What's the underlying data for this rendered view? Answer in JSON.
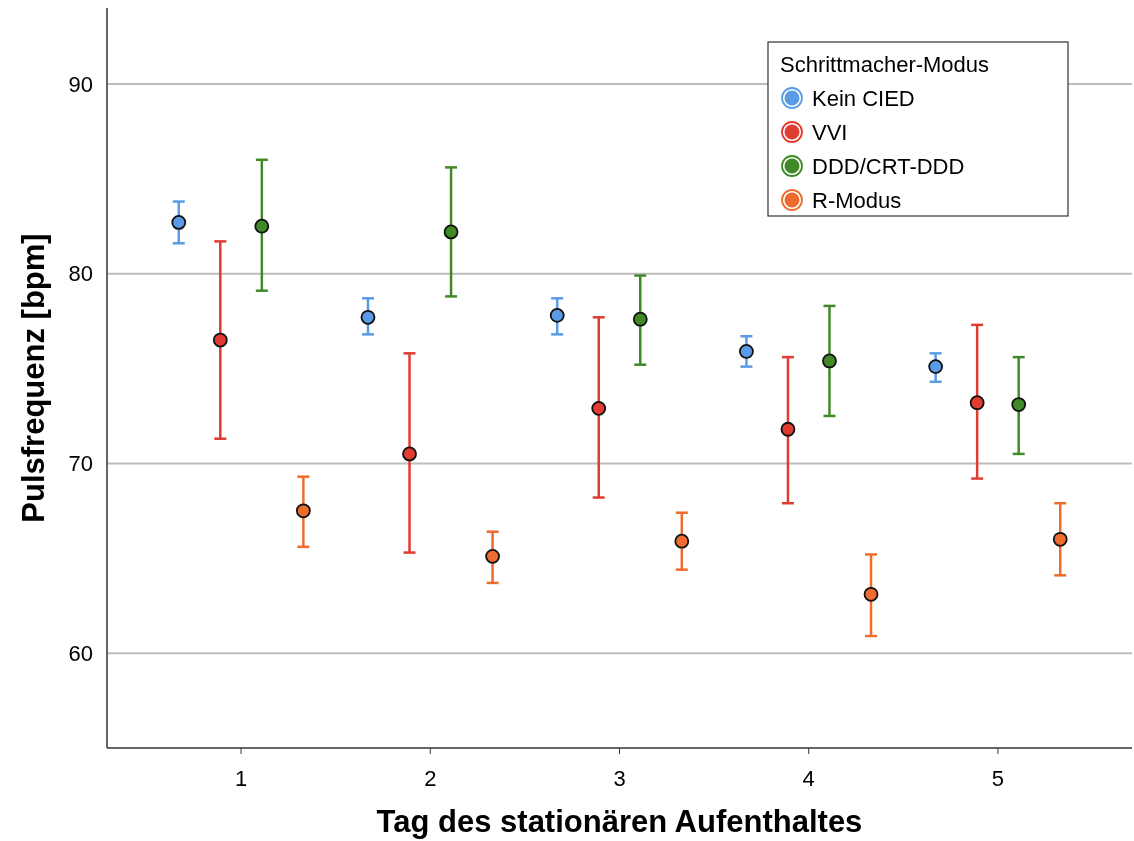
{
  "chart_data": {
    "type": "scatter",
    "xlabel": "Tag des stationären Aufenthaltes",
    "ylabel": "Pulsfrequenz [bpm]",
    "legend_title": "Schrittmacher-Modus",
    "categories": [
      "1",
      "2",
      "3",
      "4",
      "5"
    ],
    "ylim": [
      55,
      94
    ],
    "yticks": [
      60,
      70,
      80,
      90
    ],
    "grid": "y",
    "legend": "top right",
    "marker": "circle",
    "series": [
      {
        "name": "Kein CIED",
        "color": "#5b9be6",
        "values": [
          82.7,
          77.7,
          77.8,
          75.9,
          75.1
        ],
        "errors": [
          [
            81.6,
            83.8
          ],
          [
            76.8,
            78.7
          ],
          [
            76.8,
            78.7
          ],
          [
            75.1,
            76.7
          ],
          [
            74.3,
            75.8
          ]
        ]
      },
      {
        "name": "VVI",
        "color": "#e03c31",
        "values": [
          76.5,
          70.5,
          72.9,
          71.8,
          73.2
        ],
        "errors": [
          [
            71.3,
            81.7
          ],
          [
            65.3,
            75.8
          ],
          [
            68.2,
            77.7
          ],
          [
            67.9,
            75.6
          ],
          [
            69.2,
            77.3
          ]
        ]
      },
      {
        "name": "DDD/CRT-DDD",
        "color": "#3f8a26",
        "values": [
          82.5,
          82.2,
          77.6,
          75.4,
          73.1
        ],
        "errors": [
          [
            79.1,
            86.0
          ],
          [
            78.8,
            85.6
          ],
          [
            75.2,
            79.9
          ],
          [
            72.5,
            78.3
          ],
          [
            70.5,
            75.6
          ]
        ]
      },
      {
        "name": "R-Modus",
        "color": "#ee6c2d",
        "values": [
          67.5,
          65.1,
          65.9,
          63.1,
          66.0
        ],
        "errors": [
          [
            65.6,
            69.3
          ],
          [
            63.7,
            66.4
          ],
          [
            64.4,
            67.4
          ],
          [
            60.9,
            65.2
          ],
          [
            64.1,
            67.9
          ]
        ]
      }
    ]
  }
}
